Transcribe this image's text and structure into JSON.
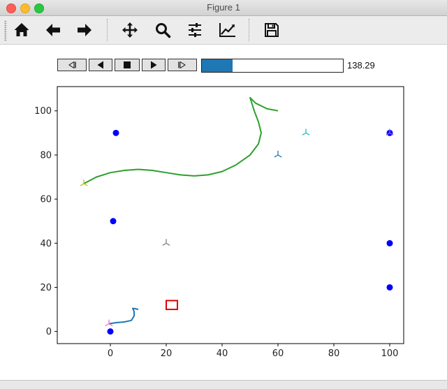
{
  "window": {
    "title": "Figure 1"
  },
  "toolbar": {
    "buttons": [
      {
        "name": "home",
        "icon": "home-icon"
      },
      {
        "name": "back",
        "icon": "arrow-left-icon"
      },
      {
        "name": "forward",
        "icon": "arrow-right-icon"
      },
      {
        "name": "pan",
        "icon": "move-icon"
      },
      {
        "name": "zoom",
        "icon": "magnifier-icon"
      },
      {
        "name": "configure",
        "icon": "sliders-icon"
      },
      {
        "name": "edit-curve",
        "icon": "line-chart-icon"
      },
      {
        "name": "save",
        "icon": "floppy-disk-icon"
      }
    ]
  },
  "animation": {
    "buttons": [
      "first-frame",
      "previous-frame",
      "stop",
      "play",
      "last-frame"
    ],
    "progress": 0.22,
    "value": "138.29"
  },
  "chart_data": {
    "type": "scatter",
    "title": "",
    "xlabel": "",
    "ylabel": "",
    "xlim": [
      -19,
      105
    ],
    "ylim": [
      -5.5,
      111
    ],
    "xticks": [
      0,
      20,
      40,
      60,
      80,
      100
    ],
    "yticks": [
      0,
      20,
      40,
      60,
      80,
      100
    ],
    "grid": false,
    "points": [
      {
        "x": 2,
        "y": 90
      },
      {
        "x": 1,
        "y": 50
      },
      {
        "x": 0,
        "y": 0
      },
      {
        "x": 100,
        "y": 90
      },
      {
        "x": 100,
        "y": 40
      },
      {
        "x": 100,
        "y": 20
      }
    ],
    "point_color": "#0000ff",
    "tri_markers": [
      {
        "x": -9.5,
        "y": 67,
        "color": "#bcbd22"
      },
      {
        "x": 20,
        "y": 40,
        "color": "#7f7f7f"
      },
      {
        "x": 60,
        "y": 80,
        "color": "#1f77b4"
      },
      {
        "x": 70,
        "y": 90,
        "color": "#17becf"
      },
      {
        "x": 100,
        "y": 90,
        "color": "#9467bd"
      },
      {
        "x": -0.5,
        "y": 3.5,
        "color": "#e377c2"
      }
    ],
    "curves": [
      {
        "color": "#2ca02c",
        "points": [
          [
            -9.5,
            67
          ],
          [
            -5,
            70
          ],
          [
            0,
            72
          ],
          [
            5,
            73
          ],
          [
            10,
            73.5
          ],
          [
            15,
            73
          ],
          [
            20,
            72
          ],
          [
            25,
            71
          ],
          [
            30,
            70.5
          ],
          [
            35,
            71
          ],
          [
            40,
            72.5
          ],
          [
            45,
            75.5
          ],
          [
            50,
            80
          ],
          [
            53,
            85
          ],
          [
            54,
            90
          ],
          [
            53,
            95
          ],
          [
            51.5,
            100
          ],
          [
            50,
            106
          ],
          [
            52,
            103.5
          ],
          [
            56,
            101
          ],
          [
            60,
            100
          ]
        ]
      },
      {
        "color": "#1f77b4",
        "points": [
          [
            -0.5,
            3.5
          ],
          [
            2,
            4
          ],
          [
            5,
            4.3
          ],
          [
            7.5,
            5
          ],
          [
            8.5,
            7
          ],
          [
            8.5,
            9
          ],
          [
            8,
            10.5
          ],
          [
            9,
            10.3
          ],
          [
            10,
            10
          ]
        ]
      }
    ],
    "rect": {
      "x": 20,
      "y": 10,
      "w": 4,
      "h": 4,
      "color": "#e00000"
    }
  }
}
